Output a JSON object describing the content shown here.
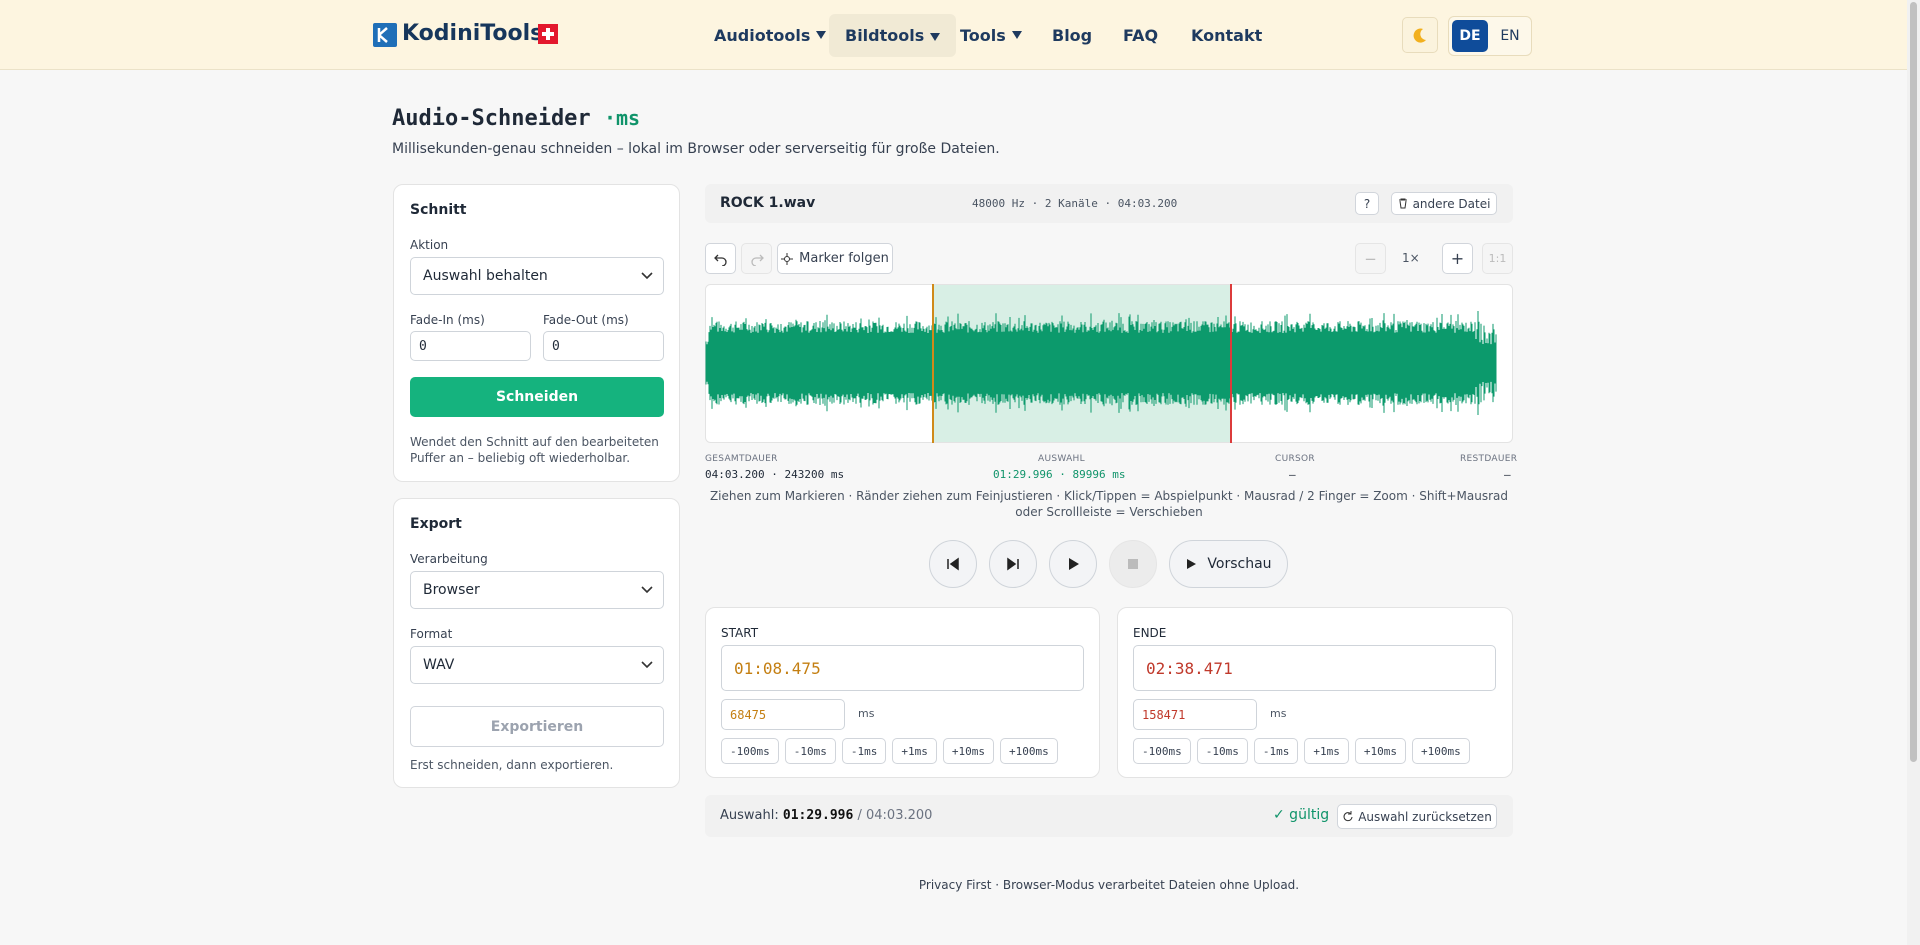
{
  "header": {
    "brand": "KodiniTools",
    "nav": [
      "Audiotools",
      "Bildtools",
      "Tools",
      "Blog",
      "FAQ",
      "Kontakt"
    ],
    "languages": [
      "DE",
      "EN"
    ]
  },
  "intro": {
    "title": "Audio-Schneider",
    "badge": "·ms",
    "subtitle": "Millisekunden-genau schneiden – lokal im Browser oder serverseitig für große Dateien."
  },
  "cut_panel": {
    "title": "Schnitt",
    "action_label": "Aktion",
    "action_value": "Auswahl behalten",
    "fade_in_label": "Fade-In (ms)",
    "fade_out_label": "Fade-Out (ms)",
    "fade_in_value": "0",
    "fade_out_value": "0",
    "button": "Schneiden",
    "note": "Wendet den Schnitt auf den bearbeiteten Puffer an – beliebig oft wiederholbar."
  },
  "export_panel": {
    "title": "Export",
    "processing_label": "Verarbeitung",
    "processing_value": "Browser",
    "format_label": "Format",
    "format_value": "WAV",
    "button": "Exportieren",
    "note": "Erst schneiden, dann exportieren."
  },
  "file_bar": {
    "name": "ROCK 1.wav",
    "info": "48000 Hz · 2 Kanäle · 04:03.200",
    "help": "?",
    "change": "andere Datei"
  },
  "toolbar": {
    "follow": "Marker folgen",
    "zoom_out": "−",
    "zoom": "1×",
    "zoom_in": "+",
    "reset_zoom": "1:1"
  },
  "stats": [
    {
      "label": "GESAMTDAUER",
      "value": "04:03.200 · 243200 ms"
    },
    {
      "label": "AUSWAHL",
      "value": "01:29.996 · 89996 ms"
    },
    {
      "label": "CURSOR",
      "value": "–"
    },
    {
      "label": "RESTDAUER",
      "value": "–"
    }
  ],
  "hint": "Ziehen zum Markieren · Ränder ziehen zum Feinjustieren · Klick/Tippen = Abspielpunkt · Mausrad / 2 Finger = Zoom · Shift+Mausrad oder Scrollleiste = Verschieben",
  "transport": {
    "preview": "Vorschau"
  },
  "start": {
    "label": "START",
    "time": "01:08.475",
    "ms": "68475",
    "unit": "ms",
    "steps": [
      "-100ms",
      "-10ms",
      "-1ms",
      "+1ms",
      "+10ms",
      "+100ms"
    ]
  },
  "end": {
    "label": "ENDE",
    "time": "02:38.471",
    "ms": "158471",
    "unit": "ms",
    "steps": [
      "-100ms",
      "-10ms",
      "-1ms",
      "+1ms",
      "+10ms",
      "+100ms"
    ]
  },
  "selection_bar": {
    "label": "Auswahl:",
    "duration": "01:29.996",
    "total": "/ 04:03.200",
    "status": "✓ gültig",
    "reset": "Auswahl zurücksetzen"
  },
  "footer": "Privacy First · Browser-Modus verarbeitet Dateien ohne Upload."
}
